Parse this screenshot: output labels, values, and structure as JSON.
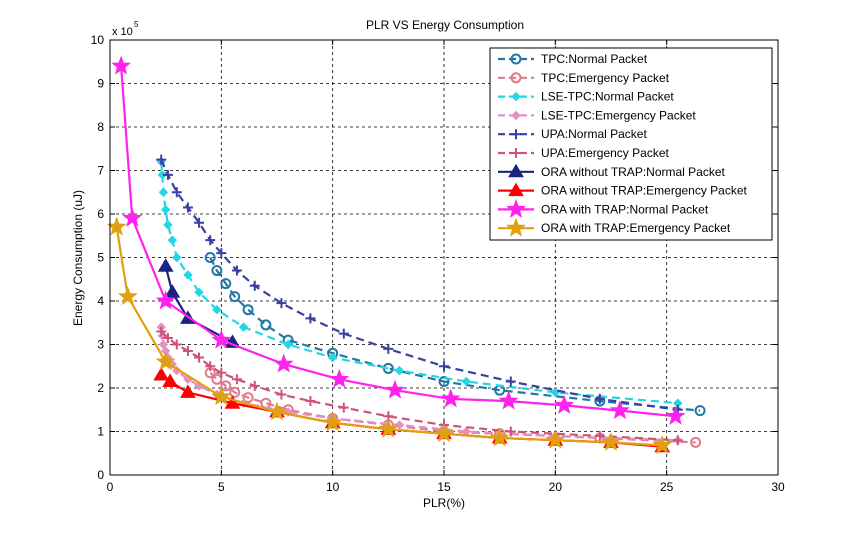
{
  "chart_data": {
    "type": "line",
    "title": "PLR VS Energy Consumption",
    "xlabel": "PLR(%)",
    "ylabel": "Energy Consumption (uJ)",
    "xlim": [
      0,
      30
    ],
    "ylim": [
      0,
      1000000
    ],
    "xticks": [
      "0",
      "5",
      "10",
      "15",
      "20",
      "25",
      "30"
    ],
    "yticks": [
      "0",
      "1",
      "2",
      "3",
      "4",
      "5",
      "6",
      "7",
      "8",
      "9",
      "10"
    ],
    "y_multiplier": "x 10",
    "y_exponent": "5",
    "grid": true,
    "legend_position": "top-right",
    "series": [
      {
        "name": "TPC:Normal Packet",
        "color": "#1f78a8",
        "dash": "dash",
        "marker": "circle",
        "x": [
          4.5,
          4.8,
          5.2,
          5.6,
          6.2,
          7.0,
          8.0,
          10.0,
          12.5,
          15.0,
          17.5,
          22.0,
          26.5
        ],
        "y": [
          500000,
          470000,
          440000,
          410000,
          380000,
          345000,
          310000,
          280000,
          245000,
          215000,
          195000,
          170000,
          148000
        ]
      },
      {
        "name": "TPC:Emergency Packet",
        "color": "#e07b8b",
        "dash": "dash",
        "marker": "circle",
        "x": [
          4.5,
          4.8,
          5.2,
          5.6,
          6.2,
          7.0,
          8.0,
          10.0,
          12.5,
          15.0,
          17.5,
          22.0,
          26.3
        ],
        "y": [
          235000,
          220000,
          205000,
          190000,
          178000,
          165000,
          150000,
          130000,
          115000,
          100000,
          95000,
          85000,
          75000
        ]
      },
      {
        "name": "LSE-TPC:Normal Packet",
        "color": "#21d7e6",
        "dash": "dash",
        "marker": "diamond",
        "x": [
          2.3,
          2.35,
          2.4,
          2.5,
          2.6,
          2.8,
          3.0,
          3.5,
          4.0,
          4.8,
          6.0,
          8.0,
          10.0,
          13.0,
          16.0,
          20.0,
          25.5
        ],
        "y": [
          720000,
          690000,
          650000,
          610000,
          575000,
          540000,
          500000,
          460000,
          420000,
          380000,
          340000,
          300000,
          270000,
          240000,
          215000,
          190000,
          165000
        ]
      },
      {
        "name": "LSE-TPC:Emergency Packet",
        "color": "#e58fc8",
        "dash": "dash",
        "marker": "diamond",
        "x": [
          2.3,
          2.35,
          2.4,
          2.5,
          2.6,
          2.8,
          3.0,
          3.5,
          4.0,
          4.8,
          6.0,
          8.0,
          10.0,
          13.0,
          16.0,
          20.0,
          25.5
        ],
        "y": [
          340000,
          320000,
          300000,
          285000,
          270000,
          255000,
          240000,
          220000,
          205000,
          185000,
          165000,
          145000,
          130000,
          115000,
          100000,
          90000,
          80000
        ]
      },
      {
        "name": "UPA:Normal Packet",
        "color": "#3a3fa3",
        "dash": "dash",
        "marker": "plus",
        "x": [
          2.3,
          2.6,
          3.0,
          3.5,
          4.0,
          4.5,
          5.0,
          5.7,
          6.5,
          7.7,
          9.0,
          10.5,
          12.5,
          15.0,
          18.0,
          22.0,
          25.5
        ],
        "y": [
          725000,
          690000,
          650000,
          615000,
          580000,
          540000,
          510000,
          470000,
          435000,
          395000,
          360000,
          325000,
          290000,
          250000,
          215000,
          175000,
          150000
        ]
      },
      {
        "name": "UPA:Emergency Packet",
        "color": "#cc5577",
        "dash": "dash",
        "marker": "plus",
        "x": [
          2.3,
          2.6,
          3.0,
          3.5,
          4.0,
          4.5,
          5.0,
          5.7,
          6.5,
          7.7,
          9.0,
          10.5,
          12.5,
          15.0,
          18.0,
          22.0,
          25.5
        ],
        "y": [
          330000,
          315000,
          300000,
          285000,
          270000,
          250000,
          235000,
          220000,
          205000,
          185000,
          170000,
          155000,
          135000,
          115000,
          100000,
          90000,
          80000
        ]
      },
      {
        "name": "ORA without TRAP:Normal Packet",
        "color": "#1a237e",
        "dash": "solid",
        "marker": "triangle",
        "x": [
          2.5,
          2.8,
          3.5,
          5.5
        ],
        "y": [
          480000,
          420000,
          360000,
          305000
        ]
      },
      {
        "name": "ORA without TRAP:Emergency Packet",
        "color": "#ff0000",
        "dash": "solid",
        "marker": "triangle",
        "x": [
          2.3,
          2.7,
          3.5,
          5.5,
          7.5,
          10.0,
          12.5,
          15.0,
          17.5,
          20.0,
          22.5,
          24.8
        ],
        "y": [
          230000,
          215000,
          190000,
          165000,
          145000,
          120000,
          105000,
          95000,
          85000,
          80000,
          75000,
          65000
        ]
      },
      {
        "name": "ORA with TRAP:Normal Packet",
        "color": "#ff22ee",
        "dash": "solid",
        "marker": "star",
        "x": [
          0.5,
          1.0,
          2.5,
          5.0,
          7.8,
          10.3,
          12.8,
          15.3,
          17.9,
          20.4,
          22.9,
          25.4
        ],
        "y": [
          940000,
          590000,
          400000,
          310000,
          255000,
          220000,
          195000,
          175000,
          170000,
          160000,
          148000,
          135000
        ]
      },
      {
        "name": "ORA with TRAP:Emergency Packet",
        "color": "#e0a010",
        "dash": "solid",
        "marker": "star",
        "x": [
          0.3,
          0.8,
          2.5,
          5.0,
          7.5,
          10.0,
          12.5,
          15.0,
          17.5,
          20.0,
          22.5,
          24.8
        ],
        "y": [
          570000,
          410000,
          260000,
          180000,
          145000,
          120000,
          105000,
          95000,
          85000,
          80000,
          75000,
          68000
        ]
      }
    ]
  }
}
